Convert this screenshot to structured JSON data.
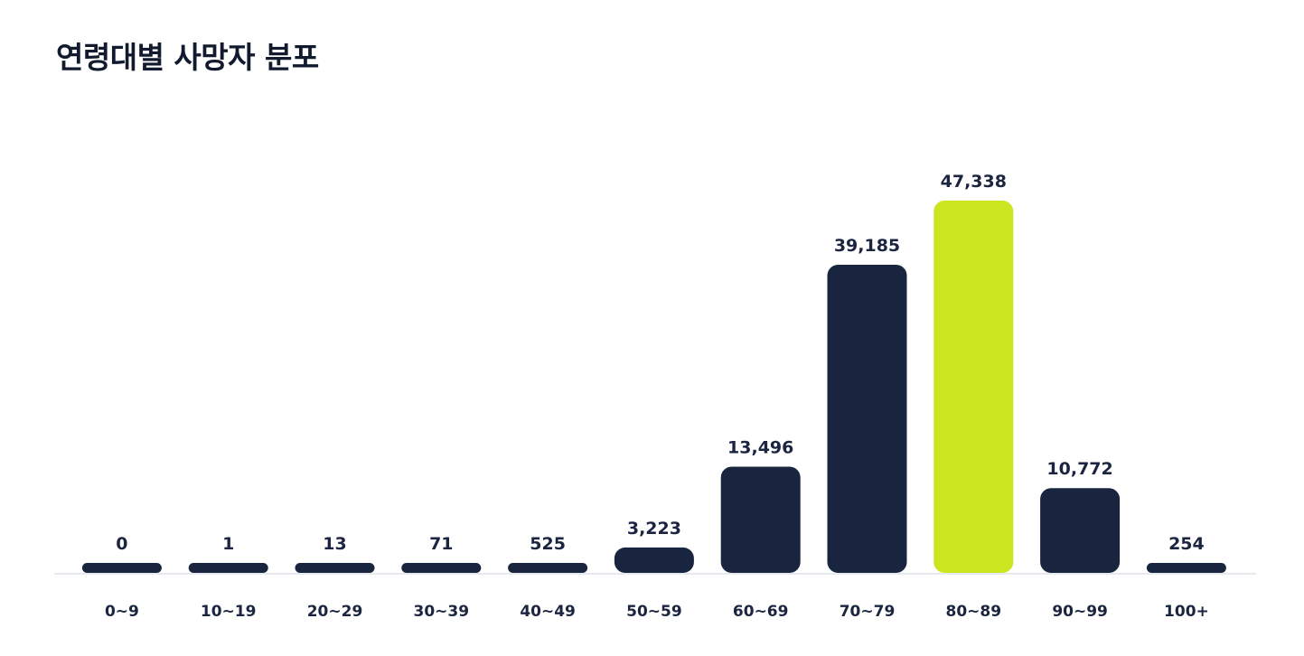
{
  "page": {
    "title": "연령대별 사망자 분포"
  },
  "colors": {
    "bar": "#19253f",
    "highlight": "#cbe61f",
    "baseline": "#e6e9ee",
    "text": "#1b2540"
  },
  "chart_data": {
    "type": "bar",
    "title": "연령대별 사망자 분포",
    "xlabel": "",
    "ylabel": "",
    "categories": [
      "0~9",
      "10~19",
      "20~29",
      "30~39",
      "40~49",
      "50~59",
      "60~69",
      "70~79",
      "80~89",
      "90~99",
      "100+"
    ],
    "values": [
      0,
      1,
      13,
      71,
      525,
      3223,
      13496,
      39185,
      47338,
      10772,
      254
    ],
    "value_labels": [
      "0",
      "1",
      "13",
      "71",
      "525",
      "3,223",
      "13,496",
      "39,185",
      "47,338",
      "10,772",
      "254"
    ],
    "highlight_category": "80~89",
    "ylim": [
      0,
      47338
    ],
    "grid": false,
    "legend": "none"
  }
}
